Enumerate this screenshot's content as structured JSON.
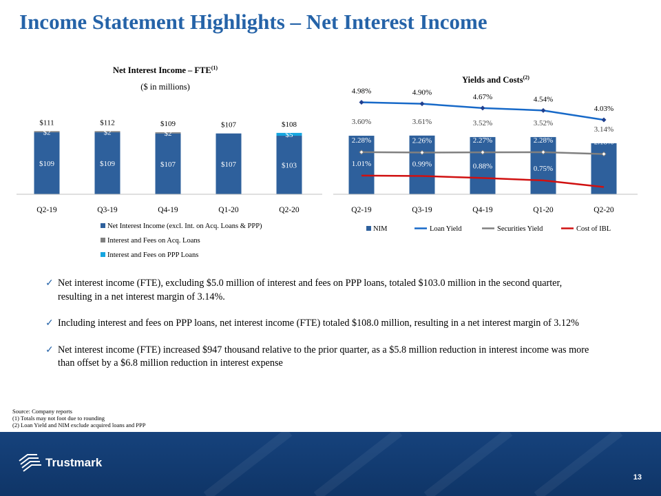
{
  "page": {
    "title": "Income Statement Highlights – Net Interest Income",
    "page_number": "13",
    "logo_text": "Trustmark"
  },
  "bullets": [
    "Net interest income (FTE), excluding $5.0 million of interest and fees on PPP loans, totaled $103.0 million in the second quarter, resulting in a net interest margin of 3.14%.",
    "Including interest and fees on PPP loans, net interest income (FTE) totaled $108.0 million, resulting in a net interest margin of 3.12%",
    "Net interest income (FTE) increased $947 thousand relative to the prior quarter, as a $5.8 million reduction in interest income was more than offset by a $6.8 million reduction in interest expense"
  ],
  "sources": [
    "Source: Company reports",
    "(1) Totals may not foot due to rounding",
    "(2) Loan Yield and NIM exclude acquired loans and PPP"
  ],
  "colors": {
    "title": "#2563a8",
    "bar_main": "#2e609c",
    "bar_acq": "#7f7f7f",
    "bar_ppp": "#16a6e0",
    "loan_yield": "#1769c8",
    "securities_yield": "#808080",
    "cost_ibl": "#d01010"
  },
  "chart_data": [
    {
      "type": "bar",
      "stacked": true,
      "title": "Net Interest Income – FTE",
      "title_superscript": "(1)",
      "subtitle": "($ in millions)",
      "categories": [
        "Q2-19",
        "Q3-19",
        "Q4-19",
        "Q1-20",
        "Q2-20"
      ],
      "series": [
        {
          "name": "Net Interest Income (excl. Int. on Acq. Loans & PPP)",
          "values": [
            109,
            109,
            107,
            107,
            103
          ],
          "labels": [
            "$109",
            "$109",
            "$107",
            "$107",
            "$103"
          ],
          "color": "#2e609c"
        },
        {
          "name": "Interest and Fees on Acq. Loans",
          "values": [
            2,
            2,
            2,
            0,
            0
          ],
          "labels": [
            "$2",
            "$2",
            "$2",
            "",
            ""
          ],
          "color": "#7f7f7f"
        },
        {
          "name": "Interest and Fees on PPP Loans",
          "values": [
            0,
            0,
            0,
            0,
            5
          ],
          "labels": [
            "",
            "",
            "",
            "",
            "$5"
          ],
          "color": "#16a6e0"
        }
      ],
      "totals": [
        "$111",
        "$112",
        "$109",
        "$107",
        "$108"
      ],
      "ylim": [
        0,
        130
      ],
      "legend_position": "bottom"
    },
    {
      "type": "bar",
      "combo": "bar+line",
      "title": "Yields and Costs",
      "title_superscript": "(2)",
      "categories": [
        "Q2-19",
        "Q3-19",
        "Q4-19",
        "Q1-20",
        "Q2-20"
      ],
      "series": [
        {
          "name": "NIM",
          "type": "bar",
          "values": [
            3.6,
            3.61,
            3.52,
            3.52,
            3.14
          ],
          "labels": [
            "3.60%",
            "3.61%",
            "3.52%",
            "3.52%",
            "3.14%"
          ],
          "color": "#2e609c"
        },
        {
          "name": "Loan Yield",
          "type": "line",
          "values": [
            4.98,
            4.9,
            4.67,
            4.54,
            4.03
          ],
          "labels": [
            "4.98%",
            "4.90%",
            "4.67%",
            "4.54%",
            "4.03%"
          ],
          "color": "#1769c8"
        },
        {
          "name": "Securities Yield",
          "type": "line",
          "values": [
            2.28,
            2.26,
            2.27,
            2.28,
            2.18
          ],
          "labels": [
            "2.28%",
            "2.26%",
            "2.27%",
            "2.28%",
            "2.18%"
          ],
          "color": "#808080"
        },
        {
          "name": "Cost of IBL",
          "type": "line",
          "values": [
            1.01,
            0.99,
            0.88,
            0.75,
            0.39
          ],
          "labels": [
            "1.01%",
            "0.99%",
            "0.88%",
            "0.75%",
            "0.39%"
          ],
          "color": "#d01010"
        }
      ],
      "legend_position": "bottom"
    }
  ]
}
